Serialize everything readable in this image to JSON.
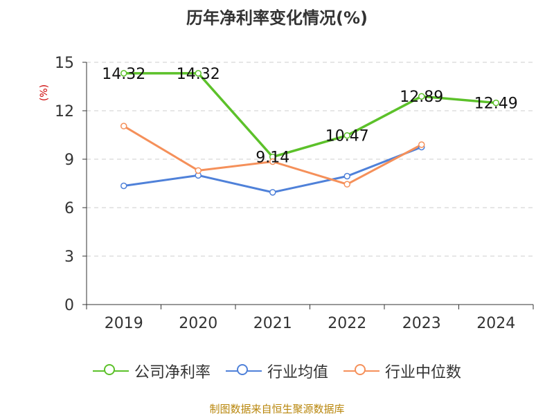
{
  "chart_data": {
    "type": "line",
    "title": "历年净利率变化情况(%)",
    "ylabel": "(%)",
    "categories": [
      "2019",
      "2020",
      "2021",
      "2022",
      "2023",
      "2024"
    ],
    "ylim": [
      0,
      15
    ],
    "yticks": [
      0,
      3,
      6,
      9,
      12,
      15
    ],
    "grid": true,
    "legend_position": "bottom",
    "series": [
      {
        "name": "公司净利率",
        "color": "#5cc12a",
        "values": [
          14.32,
          14.32,
          9.14,
          10.47,
          12.89,
          12.49
        ],
        "labels": [
          "14.32",
          "14.32",
          "9.14",
          "10.47",
          "12.89",
          "12.49"
        ]
      },
      {
        "name": "行业均值",
        "color": "#4f81d9",
        "values": [
          7.35,
          8.0,
          6.95,
          7.95,
          9.75,
          null
        ]
      },
      {
        "name": "行业中位数",
        "color": "#f5905a",
        "values": [
          11.05,
          8.3,
          8.85,
          7.45,
          9.9,
          null
        ]
      }
    ]
  },
  "source": "制图数据来自恒生聚源数据库"
}
